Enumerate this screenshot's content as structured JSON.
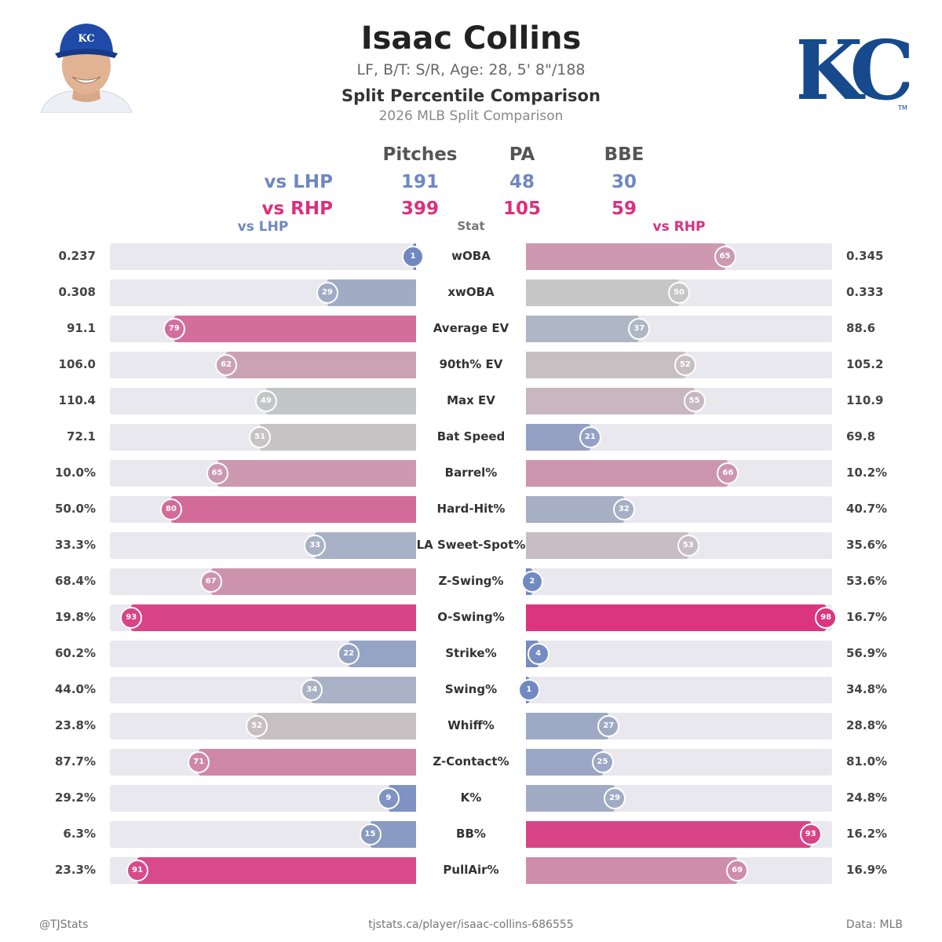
{
  "header": {
    "player_name": "Isaac Collins",
    "bio": "LF, B/T: S/R, Age: 28, 5' 8\"/188",
    "title": "Split Percentile Comparison",
    "subtitle": "2026 MLB Split Comparison",
    "team_logo_text": "KC",
    "trademark": "TM",
    "cap_logo_text": "KC"
  },
  "summary": {
    "columns": [
      "Pitches",
      "PA",
      "BBE"
    ],
    "rows": [
      {
        "label": "vs LHP",
        "values": [
          "191",
          "48",
          "30"
        ]
      },
      {
        "label": "vs RHP",
        "values": [
          "399",
          "105",
          "59"
        ]
      }
    ]
  },
  "column_headers": {
    "left": "vs LHP",
    "center": "Stat",
    "right": "vs RHP"
  },
  "colors": {
    "low": "#6f87c2",
    "mid": "#c6c6c6",
    "high": "#dc2f7d",
    "track": "#e8e8ee"
  },
  "chart_data": {
    "type": "bar",
    "layout": "diverging percentile bars",
    "series": [
      {
        "name": "vs LHP",
        "values": [
          1,
          29,
          79,
          62,
          49,
          51,
          65,
          80,
          33,
          67,
          93,
          22,
          34,
          52,
          71,
          9,
          15,
          91
        ]
      },
      {
        "name": "vs RHP",
        "values": [
          65,
          50,
          37,
          52,
          55,
          21,
          66,
          32,
          53,
          2,
          98,
          4,
          1,
          27,
          25,
          29,
          93,
          69
        ]
      }
    ],
    "xlim": [
      0,
      100
    ],
    "rows": [
      {
        "stat": "wOBA",
        "lhp_value": "0.237",
        "lhp_pct": 1,
        "rhp_value": "0.345",
        "rhp_pct": 65
      },
      {
        "stat": "xwOBA",
        "lhp_value": "0.308",
        "lhp_pct": 29,
        "rhp_value": "0.333",
        "rhp_pct": 50
      },
      {
        "stat": "Average EV",
        "lhp_value": "91.1",
        "lhp_pct": 79,
        "rhp_value": "88.6",
        "rhp_pct": 37
      },
      {
        "stat": "90th% EV",
        "lhp_value": "106.0",
        "lhp_pct": 62,
        "rhp_value": "105.2",
        "rhp_pct": 52
      },
      {
        "stat": "Max EV",
        "lhp_value": "110.4",
        "lhp_pct": 49,
        "rhp_value": "110.9",
        "rhp_pct": 55
      },
      {
        "stat": "Bat Speed",
        "lhp_value": "72.1",
        "lhp_pct": 51,
        "rhp_value": "69.8",
        "rhp_pct": 21
      },
      {
        "stat": "Barrel%",
        "lhp_value": "10.0%",
        "lhp_pct": 65,
        "rhp_value": "10.2%",
        "rhp_pct": 66
      },
      {
        "stat": "Hard-Hit%",
        "lhp_value": "50.0%",
        "lhp_pct": 80,
        "rhp_value": "40.7%",
        "rhp_pct": 32
      },
      {
        "stat": "LA Sweet-Spot%",
        "lhp_value": "33.3%",
        "lhp_pct": 33,
        "rhp_value": "35.6%",
        "rhp_pct": 53
      },
      {
        "stat": "Z-Swing%",
        "lhp_value": "68.4%",
        "lhp_pct": 67,
        "rhp_value": "53.6%",
        "rhp_pct": 2
      },
      {
        "stat": "O-Swing%",
        "lhp_value": "19.8%",
        "lhp_pct": 93,
        "rhp_value": "16.7%",
        "rhp_pct": 98
      },
      {
        "stat": "Strike%",
        "lhp_value": "60.2%",
        "lhp_pct": 22,
        "rhp_value": "56.9%",
        "rhp_pct": 4
      },
      {
        "stat": "Swing%",
        "lhp_value": "44.0%",
        "lhp_pct": 34,
        "rhp_value": "34.8%",
        "rhp_pct": 1
      },
      {
        "stat": "Whiff%",
        "lhp_value": "23.8%",
        "lhp_pct": 52,
        "rhp_value": "28.8%",
        "rhp_pct": 27
      },
      {
        "stat": "Z-Contact%",
        "lhp_value": "87.7%",
        "lhp_pct": 71,
        "rhp_value": "81.0%",
        "rhp_pct": 25
      },
      {
        "stat": "K%",
        "lhp_value": "29.2%",
        "lhp_pct": 9,
        "rhp_value": "24.8%",
        "rhp_pct": 29
      },
      {
        "stat": "BB%",
        "lhp_value": "6.3%",
        "lhp_pct": 15,
        "rhp_value": "16.2%",
        "rhp_pct": 93
      },
      {
        "stat": "PullAir%",
        "lhp_value": "23.3%",
        "lhp_pct": 91,
        "rhp_value": "16.9%",
        "rhp_pct": 69
      }
    ]
  },
  "footer": {
    "handle": "@TJStats",
    "url": "tjstats.ca/player/isaac-collins-686555",
    "source": "Data: MLB"
  }
}
